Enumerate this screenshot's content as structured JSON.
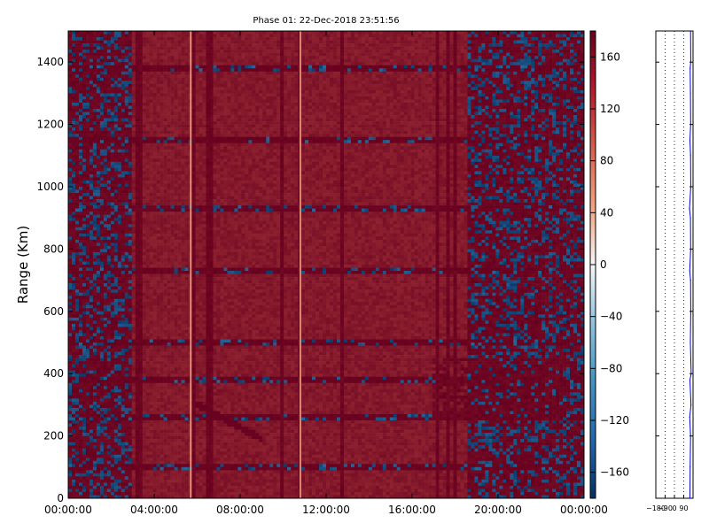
{
  "title": "Phase 01: 22-Dec-2018 23:51:56",
  "chart_data": [
    {
      "type": "heatmap",
      "title": "Phase 01: 22-Dec-2018 23:51:56",
      "xlabel": "",
      "ylabel": "Range (Km)",
      "x_tick_labels": [
        "00:00:00",
        "04:00:00",
        "08:00:00",
        "12:00:00",
        "16:00:00",
        "20:00:00",
        "00:00:00"
      ],
      "x_range": [
        "00:00:00",
        "24:00:00"
      ],
      "y_ticks": [
        0,
        200,
        400,
        600,
        800,
        1000,
        1200,
        1400
      ],
      "ylim": [
        0,
        1500
      ],
      "colorbar": {
        "ticks": [
          160,
          120,
          80,
          40,
          0,
          -40,
          -80,
          -120,
          -160
        ],
        "tick_labels": [
          "160",
          "120",
          "80",
          "40",
          "0",
          "−40",
          "−80",
          "−120",
          "−160"
        ],
        "range": [
          -180,
          180
        ],
        "colormap": "RdBu_r",
        "colors": {
          "low": "#053061",
          "mid_low": "#4393c3",
          "zero": "#f7f7f7",
          "mid_high": "#d6604d",
          "high": "#67001f"
        }
      },
      "dominant_value_range": [
        110,
        180
      ],
      "blue_band_hours": [
        [
          0,
          3
        ],
        [
          18.5,
          24
        ]
      ],
      "highlight_columns_hours": [
        5.7,
        10.8
      ],
      "noisy_range_rows_km": [
        1380,
        1150,
        930,
        730,
        500,
        380,
        260,
        100
      ],
      "slant_feature": {
        "start": [
          6,
          300
        ],
        "end": [
          9,
          190
        ]
      },
      "arc_feature_hours": [
        17,
        23
      ],
      "arc_feature_km": [
        250,
        450
      ]
    },
    {
      "type": "line",
      "xlabel": "",
      "ylabel": "",
      "x_tick_labels": [
        "−180",
        "−90",
        "0",
        "90"
      ],
      "x_ticks": [
        -180,
        -90,
        0,
        90
      ],
      "xlim": [
        -180,
        180
      ],
      "ylim": [
        0,
        1500
      ],
      "y_tick_labels_shown": false,
      "grid": "vertical dotted",
      "line_color": "#0000cc",
      "profile_value_approx": 155,
      "series": [
        {
          "range_km": [
            0,
            100,
            200,
            260,
            300,
            380,
            400,
            500,
            600,
            700,
            730,
            800,
            900,
            930,
            1000,
            1100,
            1150,
            1200,
            1300,
            1380,
            1400,
            1500
          ],
          "values": [
            150,
            152,
            156,
            148,
            160,
            150,
            162,
            154,
            158,
            156,
            148,
            157,
            155,
            146,
            158,
            156,
            150,
            157,
            155,
            152,
            158,
            156
          ]
        }
      ]
    }
  ]
}
